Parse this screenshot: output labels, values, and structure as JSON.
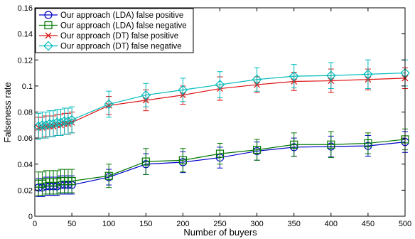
{
  "chart_data": {
    "type": "line",
    "title": "",
    "xlabel": "Number of buyers",
    "ylabel": "Falseness rate",
    "xlim": [
      0,
      500
    ],
    "ylim": [
      0,
      0.16
    ],
    "xticks": [
      0,
      50,
      100,
      150,
      200,
      250,
      300,
      350,
      400,
      450,
      500
    ],
    "yticks": [
      0,
      0.02,
      0.04,
      0.06,
      0.08,
      0.1,
      0.12,
      0.14,
      0.16
    ],
    "ytick_labels": [
      "0",
      "0.02",
      "0.04",
      "0.06",
      "0.08",
      "0.1",
      "0.12",
      "0.14",
      "0.16"
    ],
    "grid": false,
    "legend_position": "top-left",
    "x": [
      5,
      10,
      15,
      20,
      25,
      30,
      35,
      40,
      45,
      50,
      100,
      150,
      200,
      250,
      300,
      350,
      400,
      450,
      500
    ],
    "series": [
      {
        "name": "Our approach (LDA) false positive",
        "color": "#0000cc",
        "marker": "circle",
        "values": [
          0.022,
          0.022,
          0.023,
          0.023,
          0.023,
          0.023,
          0.024,
          0.024,
          0.024,
          0.024,
          0.03,
          0.04,
          0.0415,
          0.045,
          0.05,
          0.053,
          0.0535,
          0.054,
          0.057
        ],
        "errors": [
          0.007,
          0.007,
          0.007,
          0.007,
          0.007,
          0.007,
          0.007,
          0.007,
          0.007,
          0.007,
          0.006,
          0.008,
          0.008,
          0.008,
          0.007,
          0.007,
          0.008,
          0.008,
          0.008
        ]
      },
      {
        "name": "Our approach (LDA) false negative",
        "color": "#007700",
        "marker": "square",
        "values": [
          0.025,
          0.025,
          0.026,
          0.026,
          0.026,
          0.026,
          0.027,
          0.027,
          0.027,
          0.027,
          0.031,
          0.042,
          0.043,
          0.048,
          0.051,
          0.055,
          0.055,
          0.056,
          0.059
        ],
        "errors": [
          0.009,
          0.009,
          0.009,
          0.009,
          0.009,
          0.009,
          0.009,
          0.009,
          0.009,
          0.009,
          0.009,
          0.01,
          0.009,
          0.008,
          0.008,
          0.009,
          0.01,
          0.008,
          0.008
        ]
      },
      {
        "name": "Our approach (DT) false positive",
        "color": "#dd1111",
        "marker": "x",
        "values": [
          0.068,
          0.068,
          0.069,
          0.069,
          0.069,
          0.07,
          0.07,
          0.071,
          0.071,
          0.072,
          0.085,
          0.089,
          0.093,
          0.098,
          0.101,
          0.1035,
          0.104,
          0.105,
          0.106
        ],
        "errors": [
          0.008,
          0.008,
          0.008,
          0.008,
          0.008,
          0.008,
          0.008,
          0.008,
          0.008,
          0.008,
          0.007,
          0.008,
          0.007,
          0.009,
          0.006,
          0.007,
          0.009,
          0.008,
          0.008
        ]
      },
      {
        "name": "Our approach (DT) false negative",
        "color": "#00bbbb",
        "marker": "diamond",
        "values": [
          0.069,
          0.07,
          0.07,
          0.071,
          0.071,
          0.072,
          0.072,
          0.073,
          0.073,
          0.074,
          0.086,
          0.093,
          0.097,
          0.101,
          0.105,
          0.1075,
          0.108,
          0.109,
          0.11
        ],
        "errors": [
          0.01,
          0.01,
          0.01,
          0.01,
          0.01,
          0.01,
          0.01,
          0.01,
          0.01,
          0.01,
          0.01,
          0.009,
          0.009,
          0.01,
          0.009,
          0.009,
          0.01,
          0.011,
          0.01
        ]
      }
    ]
  }
}
